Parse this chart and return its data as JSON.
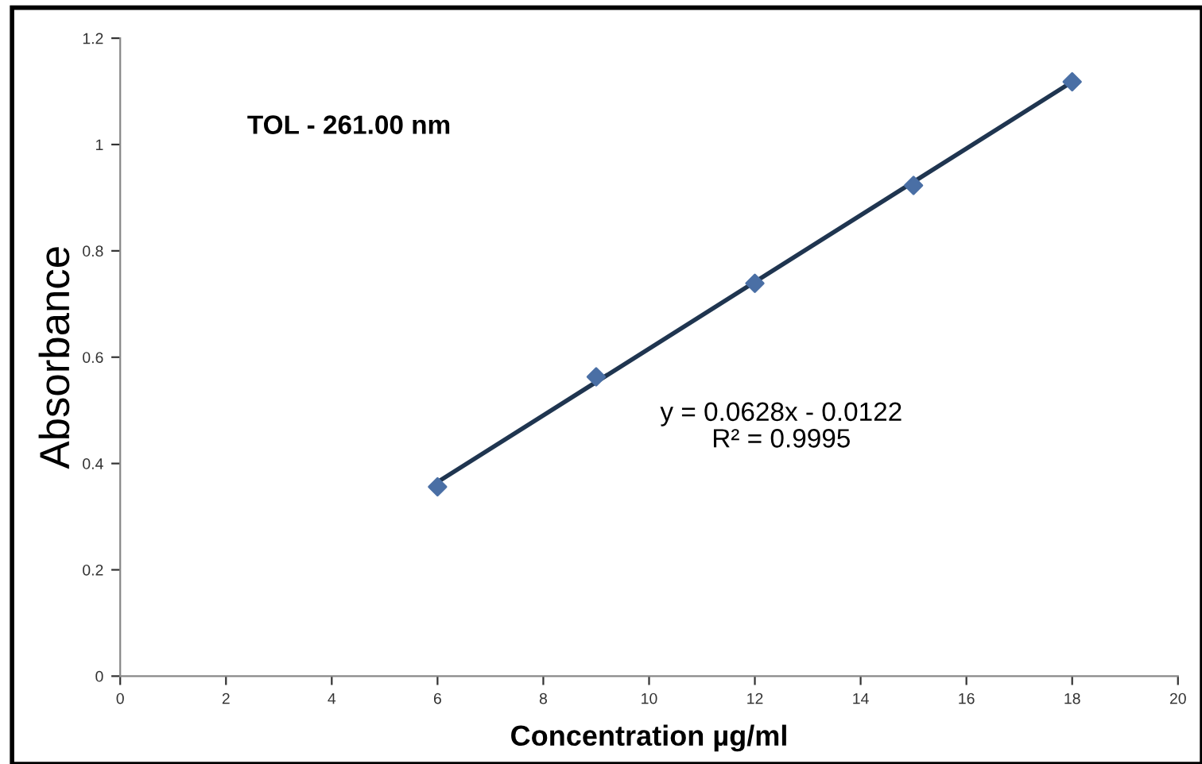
{
  "chart_data": {
    "type": "scatter",
    "title": "TOL - 261.00 nm",
    "xlabel": "Concentration µg/ml",
    "ylabel": "Absorbance",
    "annotations": [
      "y = 0.0628x - 0.0122\nR² = 0.9995"
    ],
    "series": [
      {
        "color": "#4a6fa5",
        "x": [
          6,
          9,
          12,
          15,
          18
        ],
        "values": [
          0.356,
          0.563,
          0.739,
          0.923,
          1.118
        ],
        "marker": "diamond"
      },
      {
        "type": "line",
        "color": "#1f3550",
        "x": [
          6,
          18
        ],
        "values": [
          0.365,
          1.118
        ],
        "line_style": "solid"
      }
    ],
    "xlim": [
      0,
      20
    ],
    "xticks": [
      0,
      2,
      4,
      6,
      8,
      10,
      12,
      14,
      16,
      18,
      20
    ],
    "ylim": [
      0,
      1.2
    ],
    "yticks": [
      0,
      0.2,
      0.4,
      0.6,
      0.8,
      1,
      1.2
    ],
    "grid": false,
    "legend": false
  }
}
